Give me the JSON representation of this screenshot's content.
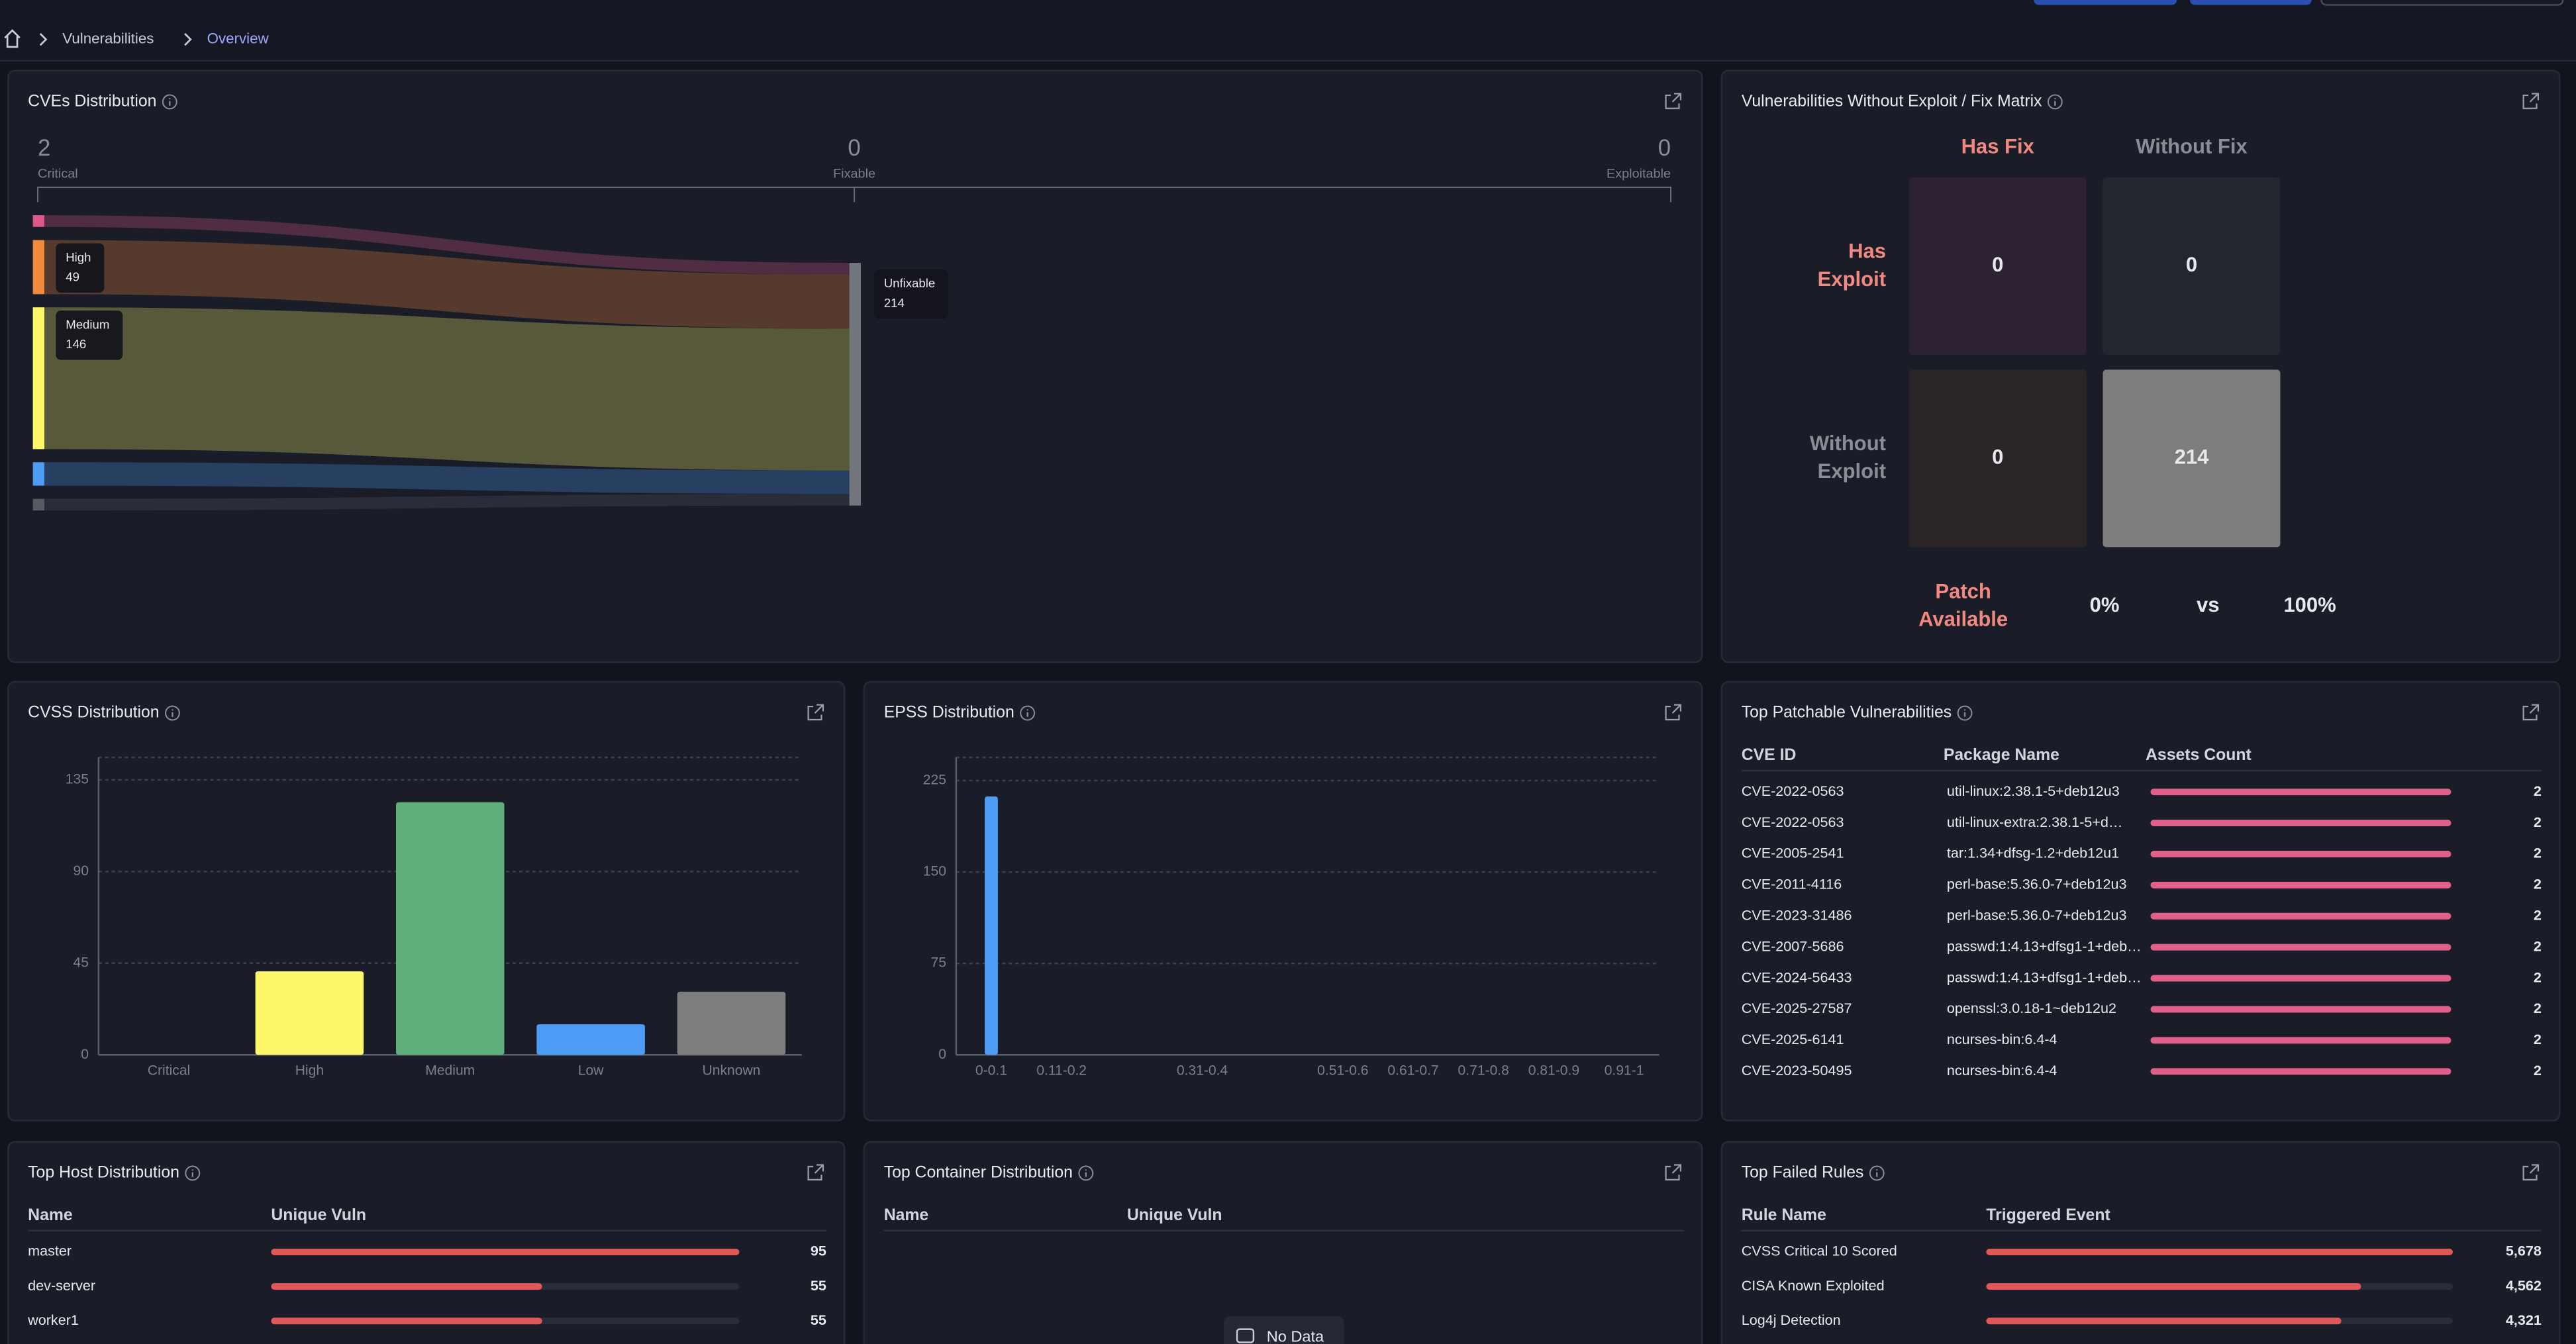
{
  "breadcrumb": [
    "Vulnerabilities",
    "Overview"
  ],
  "cves_distribution": {
    "type": "sankey",
    "title": "CVEs Distribution",
    "stages": [
      {
        "count": 2,
        "name": "Critical"
      },
      {
        "count": 0,
        "name": "Fixable"
      },
      {
        "count": 0,
        "name": "Exploitable"
      }
    ],
    "categories": [
      null,
      "High",
      "Medium",
      null,
      null
    ],
    "values": [
      2,
      49,
      146,
      15,
      2
    ],
    "colors": [
      "#e0588a",
      "#f08a3c",
      "#fdf76a",
      "#4d9cf5",
      "#555a63"
    ],
    "target": {
      "label": "Unfixable",
      "value": 214
    }
  },
  "fix_matrix": {
    "title": "Vulnerabilities Without Exploit / Fix Matrix",
    "columns": [
      "Has Fix",
      "Without Fix"
    ],
    "rows": [
      {
        "label": "Has Exploit",
        "cells": [
          0,
          0
        ]
      },
      {
        "label": "Without Exploit",
        "cells": [
          0,
          214
        ]
      }
    ],
    "footer": [
      "Patch Available",
      "0%",
      "vs",
      "100%"
    ]
  },
  "chart_data": [
    {
      "type": "bar",
      "title": "CVSS Distribution",
      "categories": [
        "Critical",
        "High",
        "Medium",
        "Low",
        "Unknown"
      ],
      "values": [
        0,
        41,
        124,
        15,
        31
      ],
      "colors": [
        "#e0588a",
        "#fdf76a",
        "#5fb07a",
        "#4d9cf5",
        "#7d7d7d"
      ],
      "ylim": [
        0,
        146
      ],
      "yticks": [
        0,
        45,
        90,
        135
      ],
      "grid": true
    },
    {
      "type": "bar",
      "title": "EPSS Distribution",
      "categories": [
        "0-0.1",
        "0.11-0.2",
        null,
        "0.31-0.4",
        null,
        "0.51-0.6",
        "0.61-0.7",
        "0.71-0.8",
        "0.81-0.9",
        "0.91-1"
      ],
      "values": [
        212,
        0,
        0,
        0,
        0,
        0,
        0,
        0,
        0,
        0
      ],
      "color": "#4d9cf5",
      "ylim": [
        0,
        244
      ],
      "yticks": [
        0,
        75,
        150,
        225
      ],
      "grid": true
    }
  ],
  "top_patchable": {
    "title": "Top Patchable Vulnerabilities",
    "columns": [
      "CVE ID",
      "Package Name",
      "Assets Count"
    ],
    "rows": [
      [
        "CVE-2022-0563",
        "util-linux:2.38.1-5+deb12u3",
        2
      ],
      [
        "CVE-2022-0563",
        "util-linux-extra:2.38.1-5+d…",
        2
      ],
      [
        "CVE-2005-2541",
        "tar:1.34+dfsg-1.2+deb12u1",
        2
      ],
      [
        "CVE-2011-4116",
        "perl-base:5.36.0-7+deb12u3",
        2
      ],
      [
        "CVE-2023-31486",
        "perl-base:5.36.0-7+deb12u3",
        2
      ],
      [
        "CVE-2007-5686",
        "passwd:1:4.13+dfsg1-1+deb…",
        2
      ],
      [
        "CVE-2024-56433",
        "passwd:1:4.13+dfsg1-1+deb…",
        2
      ],
      [
        "CVE-2025-27587",
        "openssl:3.0.18-1~deb12u2",
        2
      ],
      [
        "CVE-2025-6141",
        "ncurses-bin:6.4-4",
        2
      ],
      [
        "CVE-2023-50495",
        "ncurses-bin:6.4-4",
        2
      ]
    ]
  },
  "top_host": {
    "title": "Top Host Distribution",
    "columns": [
      "Name",
      "Unique Vuln"
    ],
    "rows": [
      [
        "master",
        95
      ],
      [
        "dev-server",
        55
      ],
      [
        "worker1",
        55
      ]
    ]
  },
  "top_container": {
    "title": "Top Container Distribution",
    "columns": [
      "Name",
      "Unique Vuln"
    ],
    "empty": "No Data"
  },
  "top_failed_rules": {
    "title": "Top Failed Rules",
    "columns": [
      "Rule Name",
      "Triggered Event"
    ],
    "rows": [
      [
        "CVSS Critical 10 Scored",
        {
          "value": 5678,
          "label": "5,678"
        }
      ],
      [
        "CISA Known Exploited",
        {
          "value": 4562,
          "label": "4,562"
        }
      ],
      [
        "Log4j Detection",
        {
          "value": 4321,
          "label": "4,321"
        }
      ]
    ]
  }
}
